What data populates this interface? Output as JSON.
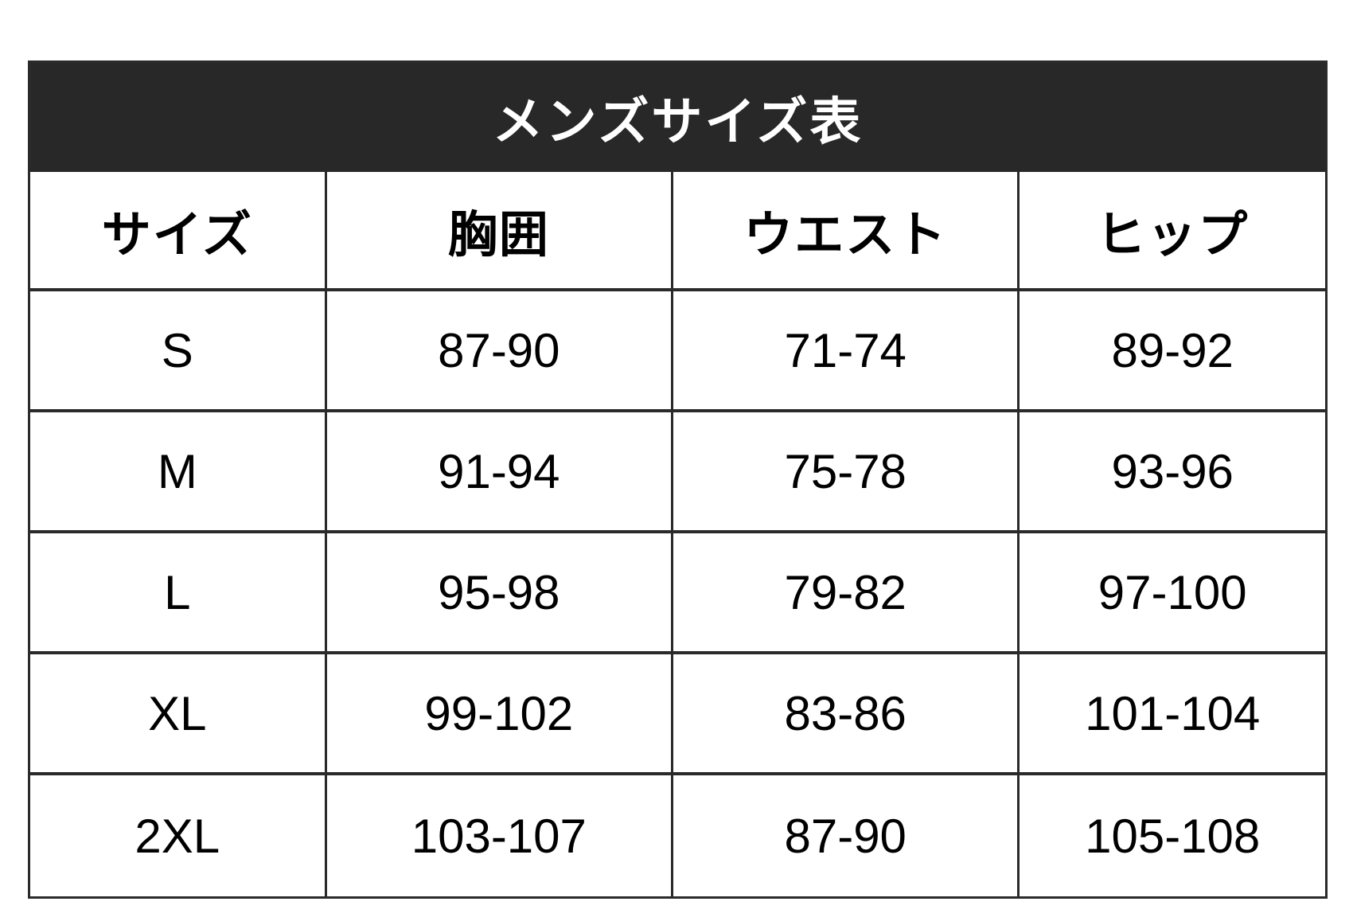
{
  "chart_data": {
    "type": "table",
    "title": "メンズサイズ表",
    "columns": [
      "サイズ",
      "胸囲",
      "ウエスト",
      "ヒップ"
    ],
    "rows": [
      [
        "S",
        "87-90",
        "71-74",
        "89-92"
      ],
      [
        "M",
        "91-94",
        "75-78",
        "93-96"
      ],
      [
        "L",
        "95-98",
        "79-82",
        "97-100"
      ],
      [
        "XL",
        "99-102",
        "83-86",
        "101-104"
      ],
      [
        "2XL",
        "103-107",
        "87-90",
        "105-108"
      ]
    ]
  },
  "colors": {
    "title-bar-bg": "#282828",
    "title-text": "#ffffff",
    "table-border": "#2a2a2a",
    "cell-text": "#000000",
    "page-bg": "#ffffff"
  }
}
